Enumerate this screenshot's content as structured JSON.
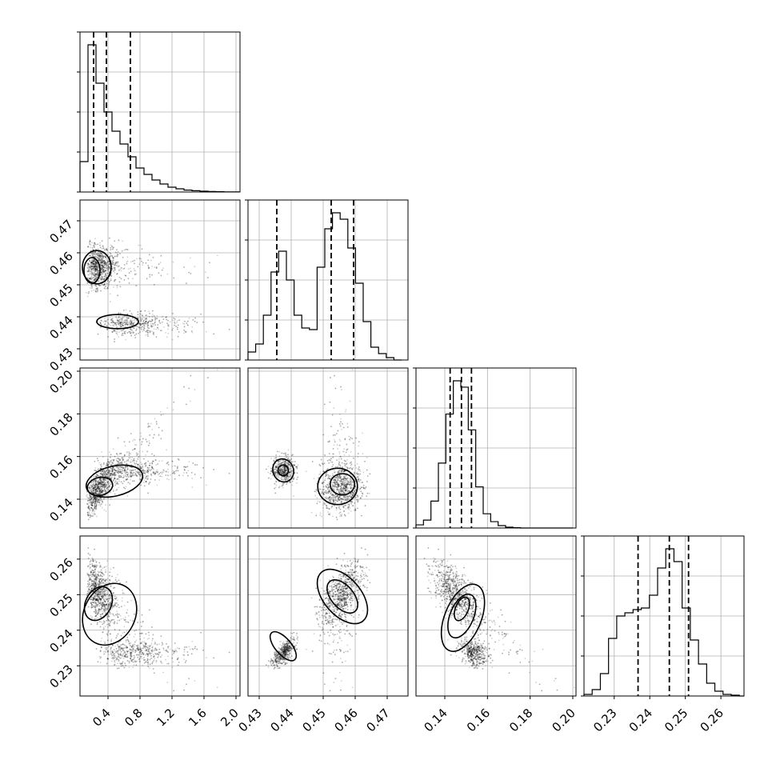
{
  "chart_data": {
    "type": "scatter",
    "title": "",
    "layout": "corner-plot-4x4-lower-triangle",
    "grid": true,
    "parameters": [
      {
        "id": "p0",
        "range": [
          0.05,
          2.05
        ],
        "ticks": [
          "0.4",
          "0.8",
          "1.2",
          "1.6",
          "2.0"
        ],
        "tick_values": [
          0.4,
          0.8,
          1.2,
          1.6,
          2.0
        ],
        "quantiles": [
          0.22,
          0.38,
          0.68
        ],
        "hist": {
          "edges": [
            0.05,
            0.15,
            0.25,
            0.35,
            0.45,
            0.55,
            0.65,
            0.75,
            0.85,
            0.95,
            1.05,
            1.15,
            1.25,
            1.35,
            1.45,
            1.55,
            1.65,
            1.75,
            1.85,
            1.95,
            2.05
          ],
          "counts": [
            0.19,
            0.92,
            0.68,
            0.5,
            0.38,
            0.3,
            0.22,
            0.15,
            0.11,
            0.075,
            0.05,
            0.03,
            0.02,
            0.012,
            0.008,
            0.005,
            0.003,
            0.002,
            0.001,
            0.0005
          ]
        }
      },
      {
        "id": "p1",
        "range": [
          0.4265,
          0.4765
        ],
        "ticks": [
          "0.43",
          "0.44",
          "0.45",
          "0.46",
          "0.47"
        ],
        "tick_values": [
          0.43,
          0.44,
          0.45,
          0.46,
          0.47
        ],
        "quantiles": [
          0.4355,
          0.4525,
          0.4595
        ],
        "hist": {
          "edges": [
            0.4265,
            0.4289,
            0.4313,
            0.4337,
            0.4361,
            0.4385,
            0.4409,
            0.4433,
            0.4457,
            0.4481,
            0.4505,
            0.4529,
            0.4553,
            0.4577,
            0.4601,
            0.4625,
            0.4649,
            0.4673,
            0.4697,
            0.4721,
            0.4745
          ],
          "counts": [
            0.05,
            0.1,
            0.28,
            0.55,
            0.68,
            0.5,
            0.28,
            0.2,
            0.19,
            0.58,
            0.82,
            0.92,
            0.88,
            0.7,
            0.48,
            0.24,
            0.08,
            0.04,
            0.015,
            0.0
          ]
        }
      },
      {
        "id": "p2",
        "range": [
          0.1265,
          0.2015
        ],
        "ticks": [
          "0.14",
          "0.16",
          "0.18",
          "0.20"
        ],
        "tick_values": [
          0.14,
          0.16,
          0.18,
          0.2
        ],
        "quantiles": [
          0.1425,
          0.1478,
          0.1525
        ],
        "hist": {
          "edges": [
            0.1265,
            0.13,
            0.1335,
            0.137,
            0.1405,
            0.144,
            0.1475,
            0.151,
            0.1545,
            0.158,
            0.1615,
            0.165,
            0.1685,
            0.172,
            0.1755,
            0.179,
            0.1825,
            0.186,
            0.1895,
            0.193,
            0.1965,
            0.2
          ],
          "counts": [
            0.02,
            0.05,
            0.17,
            0.41,
            0.72,
            0.93,
            0.89,
            0.62,
            0.26,
            0.09,
            0.04,
            0.015,
            0.005,
            0.002,
            0.0,
            0.0,
            0.0,
            0.0,
            0.0,
            0.0,
            0.0
          ]
        }
      },
      {
        "id": "p3",
        "range": [
          0.2215,
          0.2665
        ],
        "ticks": [
          "0.23",
          "0.24",
          "0.25",
          "0.26"
        ],
        "tick_values": [
          0.23,
          0.24,
          0.25,
          0.26
        ],
        "quantiles": [
          0.2367,
          0.2455,
          0.2509
        ],
        "hist": {
          "edges": [
            0.2215,
            0.2238,
            0.2261,
            0.2284,
            0.2307,
            0.233,
            0.2353,
            0.2376,
            0.2399,
            0.2422,
            0.2445,
            0.2468,
            0.2491,
            0.2514,
            0.2537,
            0.256,
            0.2583,
            0.2606,
            0.2629,
            0.2652,
            0.2665
          ],
          "counts": [
            0.01,
            0.04,
            0.14,
            0.36,
            0.5,
            0.52,
            0.54,
            0.55,
            0.63,
            0.8,
            0.92,
            0.84,
            0.55,
            0.35,
            0.2,
            0.08,
            0.03,
            0.01,
            0.005,
            0.0
          ]
        }
      }
    ]
  }
}
